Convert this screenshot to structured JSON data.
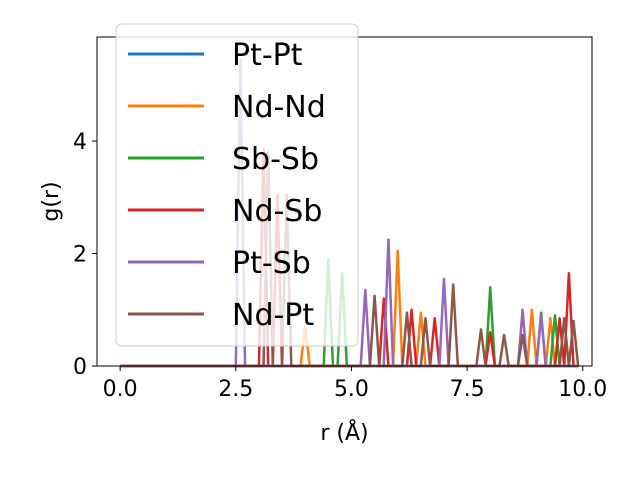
{
  "chart_data": {
    "type": "line",
    "title": "",
    "xlabel": "r (Å)",
    "ylabel": "g(r)",
    "xlim": [
      -0.5,
      10.2
    ],
    "ylim": [
      0,
      5.85
    ],
    "xticks": [
      0.0,
      2.5,
      5.0,
      7.5,
      10.0
    ],
    "xtick_labels": [
      "0.0",
      "2.5",
      "5.0",
      "7.5",
      "10.0"
    ],
    "yticks": [
      0,
      2,
      4
    ],
    "ytick_labels": [
      "0",
      "2",
      "4"
    ],
    "grid": false,
    "legend_position": "top-left",
    "series": [
      {
        "name": "Pt-Pt",
        "color": "#1f77b4",
        "points": [
          [
            0,
            0
          ],
          [
            9.9,
            0
          ]
        ]
      },
      {
        "name": "Nd-Nd",
        "color": "#ff7f0e",
        "points": [
          [
            0,
            0
          ],
          [
            3.9,
            0
          ],
          [
            4.0,
            0.7
          ],
          [
            4.1,
            0
          ],
          [
            5.9,
            0
          ],
          [
            6.0,
            2.05
          ],
          [
            6.1,
            0
          ],
          [
            6.4,
            0
          ],
          [
            6.5,
            0.95
          ],
          [
            6.6,
            0
          ],
          [
            8.8,
            0
          ],
          [
            8.9,
            1.0
          ],
          [
            9.0,
            0
          ],
          [
            9.2,
            0
          ],
          [
            9.3,
            0.85
          ],
          [
            9.4,
            0
          ],
          [
            9.9,
            0
          ]
        ]
      },
      {
        "name": "Sb-Sb",
        "color": "#2ca02c",
        "points": [
          [
            0,
            0
          ],
          [
            4.4,
            0
          ],
          [
            4.5,
            1.9
          ],
          [
            4.6,
            0
          ],
          [
            4.7,
            0
          ],
          [
            4.8,
            1.65
          ],
          [
            4.9,
            0
          ],
          [
            7.9,
            0
          ],
          [
            8.0,
            1.4
          ],
          [
            8.1,
            0
          ],
          [
            9.0,
            0
          ],
          [
            9.1,
            0.95
          ],
          [
            9.2,
            0
          ],
          [
            9.3,
            0
          ],
          [
            9.4,
            0.9
          ],
          [
            9.5,
            0
          ],
          [
            9.9,
            0
          ]
        ]
      },
      {
        "name": "Nd-Sb",
        "color": "#d62728",
        "points": [
          [
            0,
            0
          ],
          [
            3.0,
            0
          ],
          [
            3.1,
            3.85
          ],
          [
            3.2,
            0
          ],
          [
            3.3,
            0
          ],
          [
            3.4,
            3.05
          ],
          [
            3.5,
            0
          ],
          [
            5.6,
            0
          ],
          [
            5.7,
            1.2
          ],
          [
            5.8,
            0
          ],
          [
            6.2,
            0
          ],
          [
            6.3,
            1.0
          ],
          [
            6.4,
            0
          ],
          [
            6.7,
            0
          ],
          [
            6.8,
            0.85
          ],
          [
            6.9,
            0
          ],
          [
            7.9,
            0
          ],
          [
            8.0,
            0.6
          ],
          [
            8.1,
            0
          ],
          [
            9.4,
            0
          ],
          [
            9.5,
            0.85
          ],
          [
            9.6,
            0
          ],
          [
            9.7,
            1.65
          ],
          [
            9.8,
            0
          ],
          [
            9.9,
            0
          ]
        ]
      },
      {
        "name": "Pt-Sb",
        "color": "#9467bd",
        "points": [
          [
            0,
            0
          ],
          [
            2.5,
            0
          ],
          [
            2.6,
            5.45
          ],
          [
            2.7,
            0
          ],
          [
            5.2,
            0
          ],
          [
            5.3,
            1.35
          ],
          [
            5.4,
            0
          ],
          [
            5.7,
            0
          ],
          [
            5.8,
            2.25
          ],
          [
            5.9,
            0
          ],
          [
            6.9,
            0
          ],
          [
            7.0,
            1.55
          ],
          [
            7.1,
            0
          ],
          [
            8.6,
            0
          ],
          [
            8.7,
            1.0
          ],
          [
            8.8,
            0
          ],
          [
            9.0,
            0
          ],
          [
            9.1,
            0.9
          ],
          [
            9.2,
            0
          ],
          [
            9.9,
            0
          ]
        ]
      },
      {
        "name": "Nd-Pt",
        "color": "#8c564b",
        "points": [
          [
            0,
            0
          ],
          [
            3.1,
            0
          ],
          [
            3.2,
            3.8
          ],
          [
            3.3,
            0
          ],
          [
            3.5,
            0
          ],
          [
            3.6,
            3.05
          ],
          [
            3.7,
            0
          ],
          [
            5.4,
            0
          ],
          [
            5.5,
            1.25
          ],
          [
            5.6,
            0
          ],
          [
            6.1,
            0
          ],
          [
            6.2,
            0.95
          ],
          [
            6.3,
            0
          ],
          [
            6.5,
            0
          ],
          [
            6.6,
            0.85
          ],
          [
            6.7,
            0
          ],
          [
            7.1,
            0
          ],
          [
            7.2,
            1.45
          ],
          [
            7.3,
            0
          ],
          [
            7.7,
            0
          ],
          [
            7.8,
            0.65
          ],
          [
            7.9,
            0
          ],
          [
            8.2,
            0
          ],
          [
            8.3,
            0.55
          ],
          [
            8.4,
            0
          ],
          [
            8.6,
            0
          ],
          [
            8.7,
            0.55
          ],
          [
            8.8,
            0
          ],
          [
            9.5,
            0
          ],
          [
            9.6,
            0.85
          ],
          [
            9.7,
            0
          ],
          [
            9.8,
            0.8
          ],
          [
            9.9,
            0
          ]
        ]
      }
    ]
  }
}
